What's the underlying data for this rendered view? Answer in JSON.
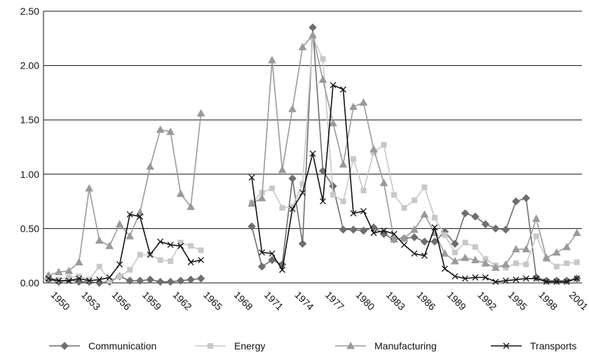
{
  "chart_data": {
    "type": "line",
    "categories": [
      null,
      "1950",
      null,
      null,
      "1953",
      null,
      null,
      "1956",
      null,
      null,
      "1959",
      null,
      null,
      "1962",
      null,
      null,
      "1965",
      null,
      null,
      "1968",
      null,
      null,
      "1971",
      null,
      null,
      "1974",
      null,
      null,
      "1977",
      null,
      null,
      "1980",
      null,
      null,
      "1983",
      null,
      null,
      "1986",
      null,
      null,
      "1989",
      null,
      null,
      "1992",
      null,
      null,
      "1995",
      null,
      null,
      "1998",
      null,
      null,
      "2001"
    ],
    "ylim": [
      0,
      2.5
    ],
    "yticks": [
      {
        "value": 0,
        "label": "0.00"
      },
      {
        "value": 0.5,
        "label": "0.50"
      },
      {
        "value": 1,
        "label": "1.00"
      },
      {
        "value": 1.5,
        "label": "1.50"
      },
      {
        "value": 2,
        "label": "2.00"
      },
      {
        "value": 2.5,
        "label": "2.50"
      }
    ],
    "grid": true,
    "legend": "bottom",
    "series": [
      {
        "name": "Communication",
        "color": "#6e6e6e",
        "marker": "diamond",
        "values": [
          0.03,
          0.01,
          0.03,
          0.01,
          0.01,
          0.0,
          0.01,
          0.06,
          0.02,
          0.02,
          0.03,
          0.01,
          0.01,
          0.02,
          0.03,
          0.04,
          null,
          null,
          null,
          null,
          0.52,
          0.15,
          0.21,
          0.17,
          0.96,
          0.36,
          2.35,
          1.03,
          0.89,
          0.49,
          0.49,
          0.48,
          0.51,
          0.45,
          0.4,
          0.41,
          0.42,
          0.38,
          0.38,
          0.47,
          0.36,
          0.64,
          0.61,
          0.54,
          0.5,
          0.49,
          0.75,
          0.78,
          0.05,
          0.02,
          0.02,
          0.02,
          0.04
        ]
      },
      {
        "name": "Energy",
        "color": "#c8c8c8",
        "marker": "square",
        "values": [
          0.05,
          0.03,
          0.05,
          0.06,
          0.03,
          0.15,
          0.02,
          0.06,
          0.12,
          0.26,
          0.26,
          0.21,
          0.2,
          0.37,
          0.34,
          0.3,
          null,
          null,
          null,
          null,
          0.74,
          0.83,
          0.87,
          0.69,
          0.7,
          0.91,
          2.26,
          2.06,
          0.81,
          0.75,
          1.14,
          0.85,
          1.2,
          1.27,
          0.81,
          0.69,
          0.76,
          0.88,
          0.6,
          0.44,
          0.28,
          0.37,
          0.33,
          0.22,
          0.16,
          0.14,
          0.18,
          0.17,
          0.43,
          0.22,
          0.15,
          0.18,
          0.19
        ]
      },
      {
        "name": "Manufacturing",
        "color": "#9a9a9a",
        "marker": "triangle",
        "values": [
          0.07,
          0.1,
          0.11,
          0.19,
          0.87,
          0.39,
          0.34,
          0.54,
          0.43,
          0.65,
          1.07,
          1.41,
          1.39,
          0.82,
          0.7,
          1.56,
          null,
          null,
          null,
          null,
          0.73,
          0.78,
          2.05,
          1.04,
          1.6,
          2.17,
          2.28,
          1.87,
          1.47,
          1.09,
          1.62,
          1.66,
          1.23,
          0.92,
          0.4,
          0.41,
          0.49,
          0.63,
          0.46,
          0.27,
          0.2,
          0.23,
          0.21,
          0.18,
          0.14,
          0.17,
          0.31,
          0.31,
          0.59,
          0.23,
          0.28,
          0.33,
          0.46
        ]
      },
      {
        "name": "Transports",
        "color": "#111111",
        "marker": "x",
        "values": [
          0.04,
          0.02,
          0.02,
          0.04,
          0.02,
          0.03,
          0.05,
          0.17,
          0.63,
          0.61,
          0.26,
          0.38,
          0.35,
          0.34,
          0.19,
          0.21,
          null,
          null,
          null,
          null,
          0.97,
          0.28,
          0.27,
          0.12,
          0.68,
          0.83,
          1.19,
          0.75,
          1.82,
          1.78,
          0.64,
          0.66,
          0.46,
          0.48,
          0.45,
          0.35,
          0.27,
          0.25,
          0.51,
          0.13,
          0.06,
          0.04,
          0.05,
          0.05,
          0.01,
          0.02,
          0.03,
          0.04,
          0.04,
          0.01,
          0.01,
          0.01,
          0.04
        ]
      }
    ]
  }
}
